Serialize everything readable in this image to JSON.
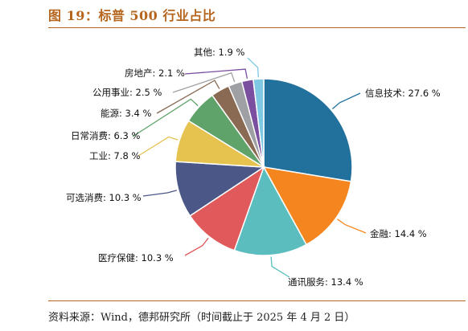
{
  "figure": {
    "title": "图 19：标普 500 行业占比",
    "source": "资料来源：Wind，德邦研究所（时间截止于 2025 年 4 月 2 日）"
  },
  "chart_data": {
    "type": "pie",
    "title": "",
    "start": "12 o'clock",
    "direction": "clockwise",
    "slices": [
      {
        "label": "信息技术",
        "value": 27.6,
        "display": "信息技术: 27.6 %",
        "color": "#21719c"
      },
      {
        "label": "金融",
        "value": 14.4,
        "display": "金融: 14.4 %",
        "color": "#f5861f"
      },
      {
        "label": "通讯服务",
        "value": 13.4,
        "display": "通讯服务: 13.4 %",
        "color": "#5bbdbe"
      },
      {
        "label": "医疗保健",
        "value": 10.3,
        "display": "医疗保健: 10.3 %",
        "color": "#e05a5b"
      },
      {
        "label": "可选消费",
        "value": 10.3,
        "display": "可选消费: 10.3 %",
        "color": "#4b5887"
      },
      {
        "label": "工业",
        "value": 7.8,
        "display": "工业: 7.8 %",
        "color": "#e6c24f"
      },
      {
        "label": "日常消费",
        "value": 6.3,
        "display": "日常消费: 6.3 %",
        "color": "#5fa36a"
      },
      {
        "label": "能源",
        "value": 3.4,
        "display": "能源: 3.4 %",
        "color": "#8a6a52"
      },
      {
        "label": "公用事业",
        "value": 2.5,
        "display": "公用事业: 2.5 %",
        "color": "#9fa0a4"
      },
      {
        "label": "房地产",
        "value": 2.1,
        "display": "房地产: 2.1 %",
        "color": "#7b4fa0"
      },
      {
        "label": "其他",
        "value": 1.9,
        "display": "其他: 1.9 %",
        "color": "#7ec8e3"
      }
    ]
  }
}
